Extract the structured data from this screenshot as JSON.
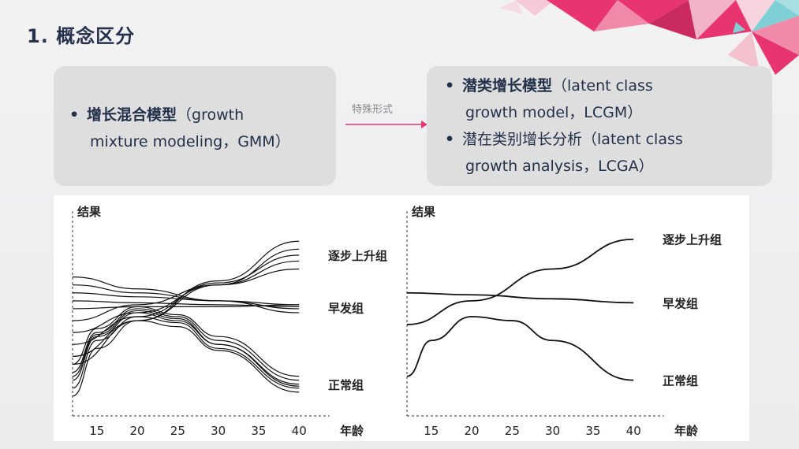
{
  "slide": {
    "title": "1. 概念区分"
  },
  "left_box": {
    "bullet": "•",
    "line1_zh": "增长混合模型",
    "line1_en": "（growth",
    "line2": "mixture modeling，GMM）"
  },
  "arrow": {
    "label": "特殊形式"
  },
  "right_box": {
    "bullets": [
      {
        "bullet": "•",
        "line1_zh": "潜类增长模型",
        "line1_en": "（latent class",
        "line2": "growth model，LCGM）"
      },
      {
        "bullet": "•",
        "line1_zh": "潜在类别增长分析",
        "line1_en": "（latent class",
        "line2": "growth analysis，LCGA）"
      }
    ]
  },
  "colors": {
    "accent_pink": "#e8356f",
    "arrow": "#e8356f",
    "text": "#23304a"
  },
  "chart_data": [
    {
      "type": "line",
      "ylabel": "结果",
      "xlabel": "年龄",
      "x_ticks": [
        "15",
        "20",
        "25",
        "30",
        "35",
        "40"
      ],
      "xlim": [
        12,
        43
      ],
      "class_labels": [
        "逐步上升组",
        "早发组",
        "正常组"
      ],
      "series": [
        {
          "class": "逐步上升组",
          "x": [
            12,
            20,
            30,
            40
          ],
          "y": [
            0.3,
            0.48,
            0.66,
            0.84
          ]
        },
        {
          "class": "逐步上升组",
          "x": [
            12,
            20,
            30,
            40
          ],
          "y": [
            0.36,
            0.5,
            0.67,
            0.81
          ]
        },
        {
          "class": "逐步上升组",
          "x": [
            12,
            20,
            30,
            40
          ],
          "y": [
            0.42,
            0.52,
            0.66,
            0.78
          ]
        },
        {
          "class": "逐步上升组",
          "x": [
            12,
            20,
            30,
            40
          ],
          "y": [
            0.26,
            0.48,
            0.68,
            0.88
          ]
        },
        {
          "class": "逐步上升组",
          "x": [
            12,
            20,
            30,
            40
          ],
          "y": [
            0.48,
            0.56,
            0.66,
            0.74
          ]
        },
        {
          "class": "早发组",
          "x": [
            12,
            20,
            30,
            40
          ],
          "y": [
            0.62,
            0.6,
            0.58,
            0.56
          ]
        },
        {
          "class": "早发组",
          "x": [
            12,
            20,
            30,
            40
          ],
          "y": [
            0.58,
            0.57,
            0.56,
            0.55
          ]
        },
        {
          "class": "早发组",
          "x": [
            12,
            20,
            30,
            40
          ],
          "y": [
            0.66,
            0.62,
            0.58,
            0.54
          ]
        },
        {
          "class": "早发组",
          "x": [
            12,
            20,
            30,
            40
          ],
          "y": [
            0.54,
            0.55,
            0.55,
            0.56
          ]
        },
        {
          "class": "早发组",
          "x": [
            12,
            20,
            30,
            40
          ],
          "y": [
            0.7,
            0.64,
            0.58,
            0.52
          ]
        },
        {
          "class": "正常组",
          "x": [
            12,
            15,
            20,
            25,
            30,
            40
          ],
          "y": [
            0.18,
            0.4,
            0.52,
            0.48,
            0.36,
            0.16
          ]
        },
        {
          "class": "正常组",
          "x": [
            12,
            15,
            20,
            25,
            30,
            40
          ],
          "y": [
            0.14,
            0.38,
            0.5,
            0.47,
            0.34,
            0.14
          ]
        },
        {
          "class": "正常组",
          "x": [
            12,
            15,
            20,
            25,
            30,
            40
          ],
          "y": [
            0.22,
            0.42,
            0.54,
            0.5,
            0.38,
            0.18
          ]
        },
        {
          "class": "正常组",
          "x": [
            12,
            15,
            20,
            25,
            30,
            40
          ],
          "y": [
            0.1,
            0.34,
            0.48,
            0.45,
            0.33,
            0.12
          ]
        },
        {
          "class": "正常组",
          "x": [
            12,
            15,
            20,
            25,
            30,
            40
          ],
          "y": [
            0.26,
            0.44,
            0.55,
            0.51,
            0.4,
            0.2
          ]
        },
        {
          "class": "正常组",
          "x": [
            12,
            15,
            20,
            25,
            30,
            40
          ],
          "y": [
            0.2,
            0.41,
            0.53,
            0.49,
            0.36,
            0.15
          ]
        }
      ]
    },
    {
      "type": "line",
      "ylabel": "结果",
      "xlabel": "年龄",
      "x_ticks": [
        "15",
        "20",
        "25",
        "30",
        "35",
        "40"
      ],
      "xlim": [
        12,
        43
      ],
      "class_labels": [
        "逐步上升组",
        "早发组",
        "正常组"
      ],
      "series": [
        {
          "class": "逐步上升组",
          "x": [
            12,
            20,
            30,
            40
          ],
          "y": [
            0.46,
            0.58,
            0.74,
            0.89
          ]
        },
        {
          "class": "早发组",
          "x": [
            12,
            20,
            30,
            40
          ],
          "y": [
            0.62,
            0.61,
            0.59,
            0.57
          ]
        },
        {
          "class": "正常组",
          "x": [
            12,
            15,
            20,
            25,
            30,
            40
          ],
          "y": [
            0.2,
            0.38,
            0.5,
            0.48,
            0.38,
            0.18
          ]
        }
      ]
    }
  ]
}
